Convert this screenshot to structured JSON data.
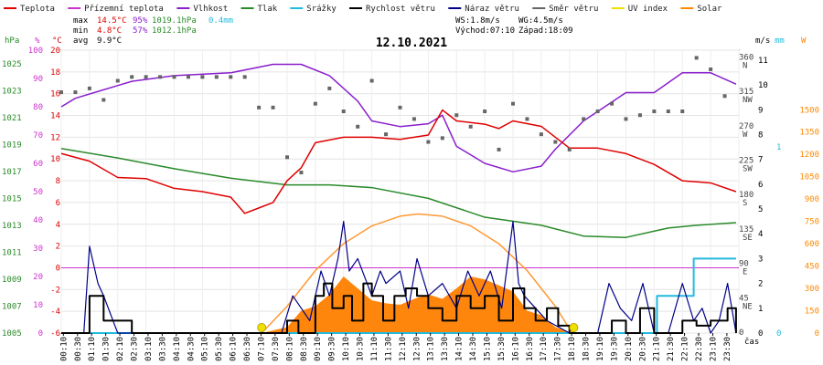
{
  "chart_data": {
    "type": "line",
    "title": "12.10.2021",
    "legend": [
      {
        "name": "Teplota",
        "color": "#e00000"
      },
      {
        "name": "Přízemní teplota",
        "color": "#cc33cc"
      },
      {
        "name": "Vlhkost",
        "color": "#8a1fcc"
      },
      {
        "name": "Tlak",
        "color": "#2a8a2a"
      },
      {
        "name": "Srážky",
        "color": "#22bbdd"
      },
      {
        "name": "Rychlost větru",
        "color": "#000000"
      },
      {
        "name": "Náraz větru",
        "color": "#000088"
      },
      {
        "name": "Směr větru",
        "color": "#666666"
      },
      {
        "name": "UV index",
        "color": "#f0e000"
      },
      {
        "name": "Solar",
        "color": "#ff8800"
      }
    ],
    "stats": {
      "max_label": "max",
      "max_temp": "14.5°C",
      "max_hum": "95%",
      "max_press": "1019.1hPa",
      "max_rain": "0.4mm",
      "min_label": "min",
      "min_temp": "4.8°C",
      "min_hum": "57%",
      "min_press": "1012.1hPa",
      "avg_label": "avg",
      "avg_temp": "9.9°C",
      "ws": "WS:1.8m/s",
      "wg": "WG:4.5m/s",
      "sunrise": "Východ:07:10",
      "sunset": "Západ:18:09"
    },
    "axis_units": {
      "press": "hPa",
      "hum": "%",
      "temp": "°C",
      "wind": "m/s",
      "rain": "mm",
      "solar": "W"
    },
    "press_ticks": [
      "1025",
      "1023",
      "1021",
      "1019",
      "1017",
      "1015",
      "1013",
      "1011",
      "1009",
      "1007",
      "1005"
    ],
    "hum_ticks": [
      "100",
      "90",
      "80",
      "70",
      "60",
      "50",
      "40",
      "30",
      "20",
      "10",
      "0"
    ],
    "temp_ticks": [
      "20",
      "18",
      "16",
      "14",
      "12",
      "10",
      "8",
      "6",
      "4",
      "2",
      "0",
      "-2",
      "-4",
      "-6"
    ],
    "dir_ticks": [
      "360",
      "315",
      "270",
      "225",
      "180",
      "135",
      "90",
      "45",
      "0"
    ],
    "dir_labels": [
      "N",
      "NW",
      "W",
      "SW",
      "S",
      "SE",
      "E",
      "NE",
      ""
    ],
    "wind_ticks": [
      "11",
      "10",
      "9",
      "8",
      "7",
      "6",
      "5",
      "4",
      "3",
      "2",
      "1",
      "0"
    ],
    "rain_ticks": [
      "1",
      "0"
    ],
    "solar_ticks": [
      "1500",
      "1350",
      "1200",
      "1050",
      "900",
      "750",
      "600",
      "450",
      "300",
      "150",
      "0"
    ],
    "x_ticks": [
      "00:10",
      "00:30",
      "01:10",
      "01:30",
      "02:10",
      "02:30",
      "03:10",
      "03:30",
      "04:10",
      "04:30",
      "05:10",
      "05:30",
      "06:10",
      "06:30",
      "07:10",
      "07:30",
      "08:10",
      "08:30",
      "09:10",
      "09:30",
      "10:10",
      "10:30",
      "11:10",
      "11:30",
      "12:10",
      "12:30",
      "13:10",
      "13:30",
      "14:10",
      "14:30",
      "15:10",
      "15:30",
      "16:10",
      "16:30",
      "17:10",
      "17:30",
      "18:10",
      "18:30",
      "19:10",
      "19:30",
      "20:10",
      "20:30",
      "21:10",
      "21:30",
      "22:10",
      "22:30",
      "23:10",
      "23:30"
    ],
    "x_unit": "čas",
    "temperature": {
      "t": [
        0,
        1,
        2,
        3,
        4,
        5,
        6,
        6.5,
        7,
        7.5,
        8,
        8.5,
        9,
        10,
        11,
        12,
        13,
        13.5,
        14,
        15,
        15.5,
        16,
        17,
        18,
        19,
        20,
        21,
        22,
        23,
        23.9
      ],
      "v": [
        10.5,
        9.8,
        8.3,
        8.2,
        7.3,
        7.0,
        6.5,
        5.0,
        5.5,
        6.0,
        8.0,
        9.2,
        11.5,
        12.0,
        12.0,
        11.8,
        12.2,
        14.5,
        13.5,
        13.2,
        12.8,
        13.5,
        13.0,
        11.0,
        11.0,
        10.5,
        9.5,
        8.0,
        7.8,
        7.0
      ]
    },
    "humidity": {
      "t": [
        0,
        0.5,
        1.5,
        2.5,
        4,
        6,
        7.5,
        8.5,
        9.5,
        10.5,
        11,
        12,
        13,
        13.5,
        14,
        15,
        16,
        17,
        17.5,
        18.5,
        20,
        21,
        22,
        23,
        23.9
      ],
      "v": [
        80,
        83,
        86,
        89,
        91,
        92,
        95,
        95,
        91,
        82,
        75,
        73,
        74,
        77,
        66,
        60,
        57,
        59,
        65,
        75,
        85,
        85,
        92,
        92,
        88
      ]
    },
    "pressure": {
      "t": [
        0,
        2,
        4,
        6,
        8,
        9.5,
        11,
        13,
        15,
        17,
        18.5,
        20,
        21.5,
        22.5,
        23.9
      ],
      "v": [
        1018.7,
        1018.0,
        1017.2,
        1016.5,
        1016.0,
        1016.0,
        1015.8,
        1015.0,
        1013.6,
        1013.0,
        1012.2,
        1012.1,
        1012.8,
        1013.0,
        1013.2
      ]
    },
    "rain_cumulative": {
      "t": [
        0,
        21.0,
        21.1,
        22.3,
        22.4,
        23.9
      ],
      "v": [
        0,
        0,
        0.2,
        0.2,
        0.4,
        0.4
      ]
    },
    "wind_speed": {
      "t": [
        0,
        0.9,
        1.0,
        1.4,
        1.5,
        2.5,
        7.8,
        8.0,
        8.4,
        9.0,
        9.3,
        9.6,
        10,
        10.3,
        10.7,
        11,
        11.4,
        11.8,
        12.2,
        12.6,
        13,
        13.5,
        14,
        14.5,
        15,
        15.5,
        16,
        16.4,
        16.8,
        17.2,
        17.6,
        18,
        19,
        19.5,
        20,
        20.5,
        21,
        21.5,
        22,
        22.5,
        23,
        23.3,
        23.6,
        23.9
      ],
      "v": [
        0,
        0,
        1.5,
        1.5,
        0.5,
        0,
        0,
        0.5,
        0,
        1.5,
        2.0,
        1.0,
        1.5,
        0.5,
        2.0,
        1.5,
        0.5,
        1.5,
        1.8,
        1.5,
        1.0,
        0.5,
        1.5,
        1.0,
        1.5,
        0.5,
        1.8,
        1.0,
        0.5,
        1.0,
        0.3,
        0,
        0,
        0.5,
        0,
        1.0,
        0,
        0,
        0.5,
        0.3,
        0.5,
        0.5,
        1.0,
        0
      ]
    },
    "wind_gust": {
      "t": [
        0,
        0.8,
        1.0,
        1.3,
        1.5,
        2.0,
        7.8,
        8.2,
        8.8,
        9.2,
        9.5,
        9.8,
        10.0,
        10.2,
        10.5,
        11.0,
        11.3,
        11.5,
        12,
        12.3,
        12.6,
        13,
        13.5,
        14,
        14.4,
        14.8,
        15.2,
        15.6,
        16,
        16.2,
        16.4,
        16.8,
        17.2,
        18,
        19,
        19.4,
        19.8,
        20.2,
        20.6,
        21,
        21.5,
        22,
        22.4,
        22.7,
        23,
        23.3,
        23.6,
        23.9
      ],
      "v": [
        0,
        0,
        3.5,
        2.0,
        1.5,
        0,
        0,
        1.5,
        0.5,
        2.5,
        1.5,
        3.0,
        4.5,
        2.5,
        3.0,
        1.5,
        2.5,
        2.0,
        2.5,
        1.0,
        3.0,
        1.5,
        2.0,
        1.0,
        2.5,
        1.5,
        2.5,
        1.0,
        4.5,
        2.0,
        1.5,
        1.0,
        0.5,
        0,
        0,
        2.0,
        1.0,
        0.5,
        2.0,
        0,
        0,
        2.0,
        0.5,
        1.0,
        0,
        0.5,
        2.0,
        0
      ]
    },
    "wind_dir": {
      "t": [
        0,
        0.5,
        1,
        1.5,
        2,
        2.5,
        3,
        3.5,
        4,
        4.5,
        5,
        5.5,
        6,
        6.5,
        7,
        7.5,
        8,
        8.5,
        9,
        9.5,
        10,
        10.5,
        11,
        11.5,
        12,
        12.5,
        13,
        13.5,
        14,
        14.5,
        15,
        15.5,
        16,
        16.5,
        17,
        17.5,
        18,
        18.5,
        19,
        19.5,
        20,
        20.5,
        21,
        21.5,
        22,
        22.5,
        23,
        23.5
      ],
      "v": [
        315,
        315,
        320,
        305,
        330,
        335,
        335,
        335,
        335,
        335,
        335,
        335,
        335,
        335,
        295,
        295,
        230,
        210,
        300,
        320,
        290,
        270,
        330,
        260,
        295,
        280,
        250,
        255,
        285,
        270,
        290,
        240,
        300,
        280,
        260,
        250,
        240,
        280,
        290,
        300,
        280,
        285,
        290,
        290,
        290,
        360,
        345,
        310
      ]
    },
    "solar": {
      "t": [
        7.1,
        8,
        8.5,
        9,
        9.5,
        10,
        10.5,
        11,
        11.5,
        12,
        12.5,
        13,
        13.5,
        14,
        14.5,
        15,
        15.5,
        16,
        16.5,
        17,
        17.5,
        18.1
      ],
      "v": [
        0,
        40,
        150,
        180,
        260,
        380,
        300,
        220,
        200,
        190,
        230,
        260,
        230,
        300,
        380,
        360,
        320,
        280,
        150,
        120,
        40,
        0
      ]
    },
    "solar_theory": {
      "t": [
        7.1,
        8,
        9,
        10,
        11,
        12,
        12.65,
        13.5,
        14.5,
        15.5,
        16.5,
        17.5,
        18.1
      ],
      "v": [
        0,
        180,
        420,
        600,
        720,
        785,
        800,
        785,
        720,
        600,
        420,
        180,
        0
      ]
    },
    "uv_markers": {
      "t": [
        7.1,
        18.15
      ],
      "v": [
        0,
        0
      ]
    }
  }
}
